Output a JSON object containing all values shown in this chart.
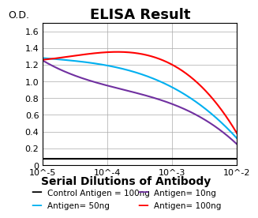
{
  "title": "ELISA Result",
  "ylabel": "O.D.",
  "xlabel": "Serial Dilutions of Antibody",
  "x_ticks": [
    0.01,
    0.001,
    0.0001,
    1e-05
  ],
  "x_tick_labels": [
    "10^-2",
    "10^-3",
    "10^-4",
    "10^-5"
  ],
  "ylim": [
    0,
    1.7
  ],
  "yticks": [
    0,
    0.2,
    0.4,
    0.6,
    0.8,
    1.0,
    1.2,
    1.4,
    1.6
  ],
  "lines": [
    {
      "label": "Control Antigen = 100ng",
      "color": "#000000",
      "y": [
        0.08,
        0.08,
        0.08,
        0.08
      ]
    },
    {
      "label": "Antigen= 10ng",
      "color": "#7030A0",
      "y": [
        1.25,
        0.95,
        0.73,
        0.25
      ]
    },
    {
      "label": "Antigen= 50ng",
      "color": "#00B0F0",
      "y": [
        1.28,
        1.19,
        0.93,
        0.32
      ]
    },
    {
      "label": "Antigen= 100ng",
      "color": "#FF0000",
      "y": [
        1.26,
        1.35,
        1.2,
        0.38
      ]
    }
  ],
  "legend_entries": [
    {
      "label": "Control Antigen = 100ng",
      "color": "#000000"
    },
    {
      "label": "Antigen= 10ng",
      "color": "#7030A0"
    },
    {
      "label": "Antigen= 50ng",
      "color": "#00B0F0"
    },
    {
      "label": "Antigen= 100ng",
      "color": "#FF0000"
    }
  ],
  "background_color": "#FFFFFF",
  "grid_color": "#AAAAAA",
  "title_fontsize": 13,
  "label_fontsize": 9,
  "tick_fontsize": 8,
  "legend_fontsize": 7.5
}
